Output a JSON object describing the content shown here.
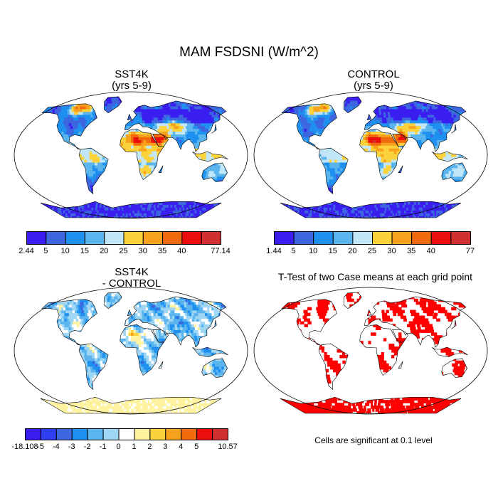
{
  "figure": {
    "title": "MAM FSDSNI (W/m^2)"
  },
  "panels": {
    "sst4k": {
      "title_line1": "SST4K",
      "title_line2": "(yrs 5-9)",
      "colorbar": {
        "labels": [
          "2.44",
          "5",
          "10",
          "15",
          "20",
          "25",
          "30",
          "35",
          "40",
          "77.14"
        ],
        "colors": [
          "#3a1ef0",
          "#3d66e0",
          "#1e90f0",
          "#5ab4ee",
          "#c0e6f8",
          "#fbd23a",
          "#f7a21d",
          "#f26a0e",
          "#ec0d0d",
          "#d03030"
        ]
      }
    },
    "control": {
      "title_line1": "CONTROL",
      "title_line2": "(yrs 5-9)",
      "colorbar": {
        "labels": [
          "1.44",
          "5",
          "10",
          "15",
          "20",
          "25",
          "30",
          "35",
          "40",
          "77"
        ],
        "colors": [
          "#3a1ef0",
          "#3d66e0",
          "#1e90f0",
          "#5ab4ee",
          "#c0e6f8",
          "#fbd23a",
          "#f7a21d",
          "#f26a0e",
          "#ec0d0d",
          "#d03030"
        ]
      }
    },
    "diff": {
      "title_line1": "SST4K",
      "title_line2": "- CONTROL",
      "colorbar": {
        "labels": [
          "-18.108",
          "-5",
          "-4",
          "-3",
          "-2",
          "-1",
          "0",
          "1",
          "2",
          "3",
          "4",
          "5",
          "10.57"
        ],
        "colors": [
          "#3a1ef0",
          "#2e3ef0",
          "#3d66e0",
          "#1e90f0",
          "#5ab4ee",
          "#9fd6f4",
          "#ffffff",
          "#fff3a0",
          "#fbd23a",
          "#f7a21d",
          "#f26a0e",
          "#ec0d0d",
          "#d03030"
        ]
      }
    },
    "ttest": {
      "title": "T-Test of two Case means at each grid point",
      "note": "Cells are significant at 0.1 level",
      "significant_color": "#ff0000"
    }
  }
}
